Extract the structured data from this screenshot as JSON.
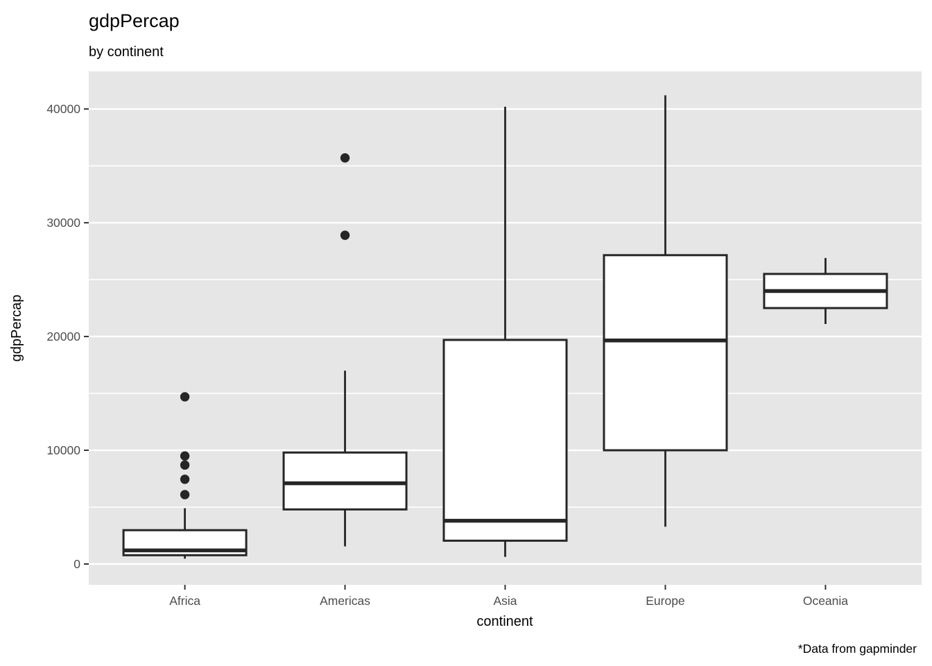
{
  "chart_data": {
    "type": "boxplot",
    "title": "gdpPercap",
    "subtitle": "by continent",
    "xlabel": "continent",
    "ylabel": "gdpPercap",
    "caption": "*Data from gapminder",
    "categories": [
      "Africa",
      "Americas",
      "Asia",
      "Europe",
      "Oceania"
    ],
    "series": [
      {
        "name": "Africa",
        "whisker_low": 470,
        "q1": 775,
        "median": 1200,
        "q3": 2975,
        "whisker_high": 4900,
        "outliers": [
          6100,
          7450,
          8700,
          9500,
          14700
        ]
      },
      {
        "name": "Americas",
        "whisker_low": 1550,
        "q1": 4800,
        "median": 7100,
        "q3": 9800,
        "whisker_high": 17000,
        "outliers": [
          28900,
          35700
        ]
      },
      {
        "name": "Asia",
        "whisker_low": 630,
        "q1": 2050,
        "median": 3800,
        "q3": 19700,
        "whisker_high": 40200,
        "outliers": []
      },
      {
        "name": "Europe",
        "whisker_low": 3280,
        "q1": 10000,
        "median": 19650,
        "q3": 27150,
        "whisker_high": 41200,
        "outliers": []
      },
      {
        "name": "Oceania",
        "whisker_low": 21100,
        "q1": 22500,
        "median": 24000,
        "q3": 25500,
        "whisker_high": 26900,
        "outliers": []
      }
    ],
    "y_ticks": [
      0,
      10000,
      20000,
      30000,
      40000
    ],
    "y_minor_ticks": [
      5000,
      15000,
      25000,
      35000
    ],
    "ylim": [
      -1830,
      43300
    ],
    "grid": true,
    "legend": false,
    "colors": {
      "panel_bg": "#E6E6E6",
      "grid_major": "#FFFFFF",
      "grid_minor": "#FFFFFF",
      "box_stroke": "#262626",
      "box_fill": "#FFFFFF",
      "outlier_fill": "#262626",
      "tick_mark": "#333333",
      "tick_label": "#4D4D4D",
      "text": "#000000"
    }
  }
}
